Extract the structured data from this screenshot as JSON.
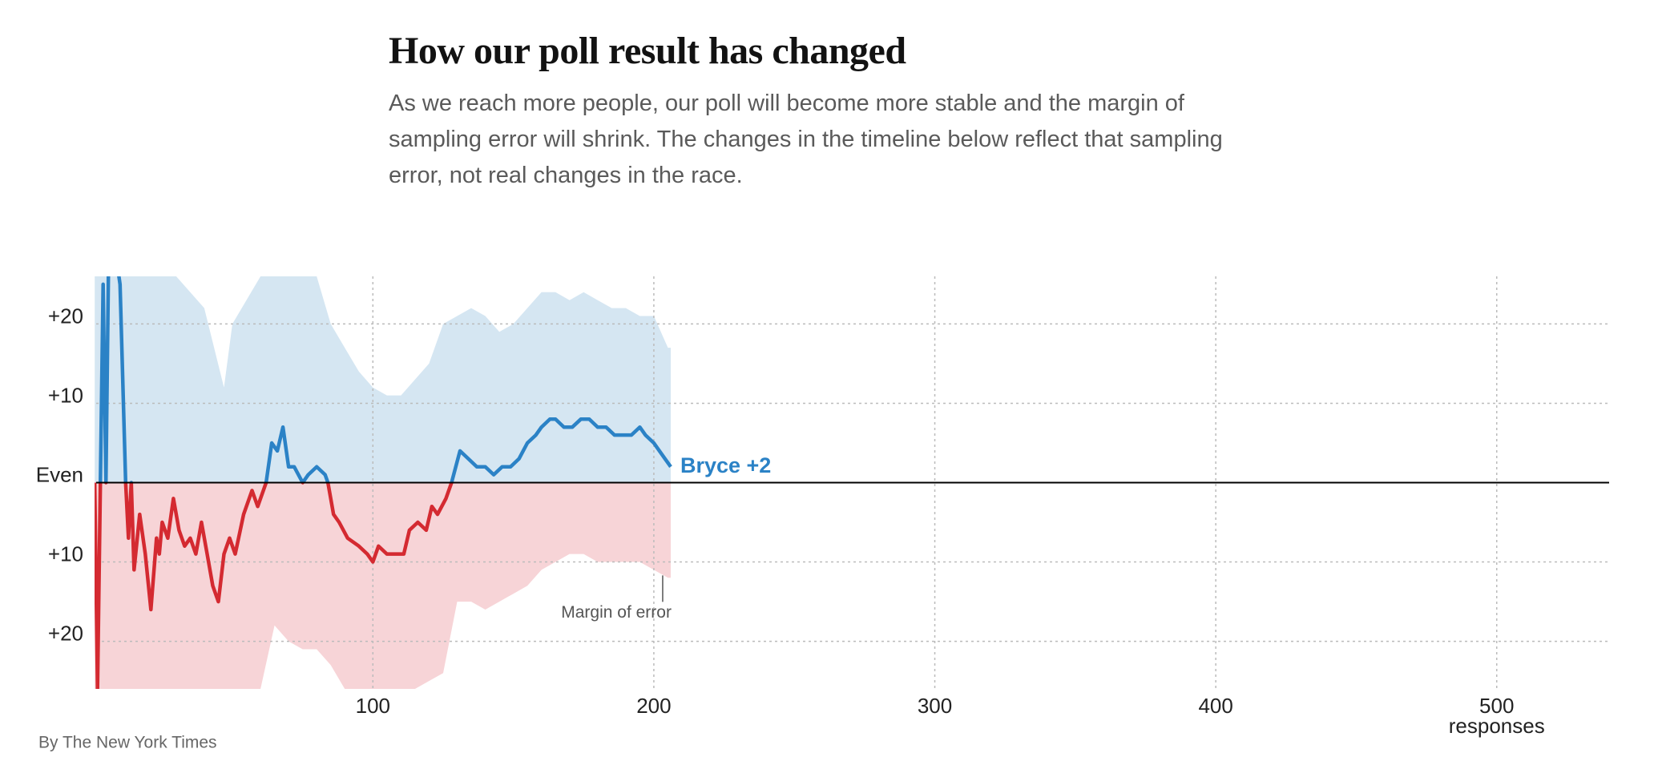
{
  "chart_data": {
    "type": "line",
    "title": "How our poll result has changed",
    "subtitle": "As we reach more people, our poll will become more stable and the margin of sampling error will shrink. The changes in the timeline below reflect that sampling error, not real changes in the race.",
    "xlabel": "responses",
    "source": "By The New York Times",
    "xlim": [
      0,
      540
    ],
    "ylim": [
      -26,
      26
    ],
    "xticks": [
      100,
      200,
      300,
      400,
      500
    ],
    "yticks": [
      {
        "value": 20,
        "label": "+20"
      },
      {
        "value": 10,
        "label": "+10"
      },
      {
        "value": 0,
        "label": "Even"
      },
      {
        "value": -10,
        "label": "+10"
      },
      {
        "value": -20,
        "label": "+20"
      }
    ],
    "grid": true,
    "color_above": "#2b82c6",
    "color_below": "#d42a31",
    "x": [
      1,
      2,
      4,
      5,
      6,
      8,
      10,
      12,
      13,
      14,
      15,
      17,
      19,
      21,
      23,
      24,
      25,
      27,
      29,
      31,
      33,
      35,
      37,
      39,
      41,
      43,
      45,
      47,
      49,
      51,
      54,
      57,
      59,
      62,
      64,
      66,
      68,
      70,
      72,
      75,
      77,
      80,
      83,
      84,
      86,
      88,
      91,
      95,
      98,
      100,
      102,
      105,
      108,
      111,
      113,
      116,
      119,
      121,
      123,
      126,
      128,
      131,
      134,
      137,
      140,
      143,
      146,
      149,
      152,
      155,
      158,
      160,
      163,
      165,
      168,
      171,
      174,
      177,
      180,
      183,
      186,
      189,
      192,
      195,
      197,
      200,
      202,
      204,
      206
    ],
    "values": [
      0,
      -26,
      25,
      0,
      30,
      30,
      25,
      0,
      -7,
      0,
      -11,
      -4,
      -9,
      -16,
      -7,
      -9,
      -5,
      -7,
      -2,
      -6,
      -8,
      -7,
      -9,
      -5,
      -9,
      -13,
      -15,
      -9,
      -7,
      -9,
      -4,
      -1,
      -3,
      0,
      5,
      4,
      7,
      2,
      2,
      0,
      1,
      2,
      1,
      0,
      -4,
      -5,
      -7,
      -8,
      -9,
      -10,
      -8,
      -9,
      -9,
      -9,
      -6,
      -5,
      -6,
      -3,
      -4,
      -2,
      0,
      4,
      3,
      2,
      2,
      1,
      2,
      2,
      3,
      5,
      6,
      7,
      8,
      8,
      7,
      7,
      8,
      8,
      7,
      7,
      6,
      6,
      6,
      7,
      6,
      5,
      4,
      3,
      2
    ],
    "end_label": "Bryce +2",
    "band": {
      "label": "Margin of error",
      "color_above": "#d5e6f2",
      "color_below": "#f7d4d7",
      "x": [
        1,
        30,
        40,
        47,
        50,
        60,
        65,
        70,
        75,
        80,
        85,
        90,
        95,
        100,
        105,
        110,
        115,
        120,
        125,
        130,
        135,
        140,
        145,
        150,
        155,
        160,
        165,
        170,
        175,
        180,
        185,
        190,
        195,
        200,
        205,
        206
      ],
      "upper": [
        26,
        26,
        22,
        12,
        20,
        26,
        26,
        26,
        26,
        26,
        20,
        17,
        14,
        12,
        11,
        11,
        13,
        15,
        20,
        21,
        22,
        21,
        19,
        20,
        22,
        24,
        24,
        23,
        24,
        23,
        22,
        22,
        21,
        21,
        17,
        17
      ],
      "lower": [
        -26,
        -26,
        -26,
        -26,
        -26,
        -26,
        -18,
        -20,
        -21,
        -21,
        -23,
        -26,
        -26,
        -26,
        -26,
        -26,
        -26,
        -25,
        -24,
        -15,
        -15,
        -16,
        -15,
        -14,
        -13,
        -11,
        -10,
        -9,
        -9,
        -10,
        -10,
        -10,
        -10,
        -11,
        -12,
        -12
      ]
    }
  }
}
